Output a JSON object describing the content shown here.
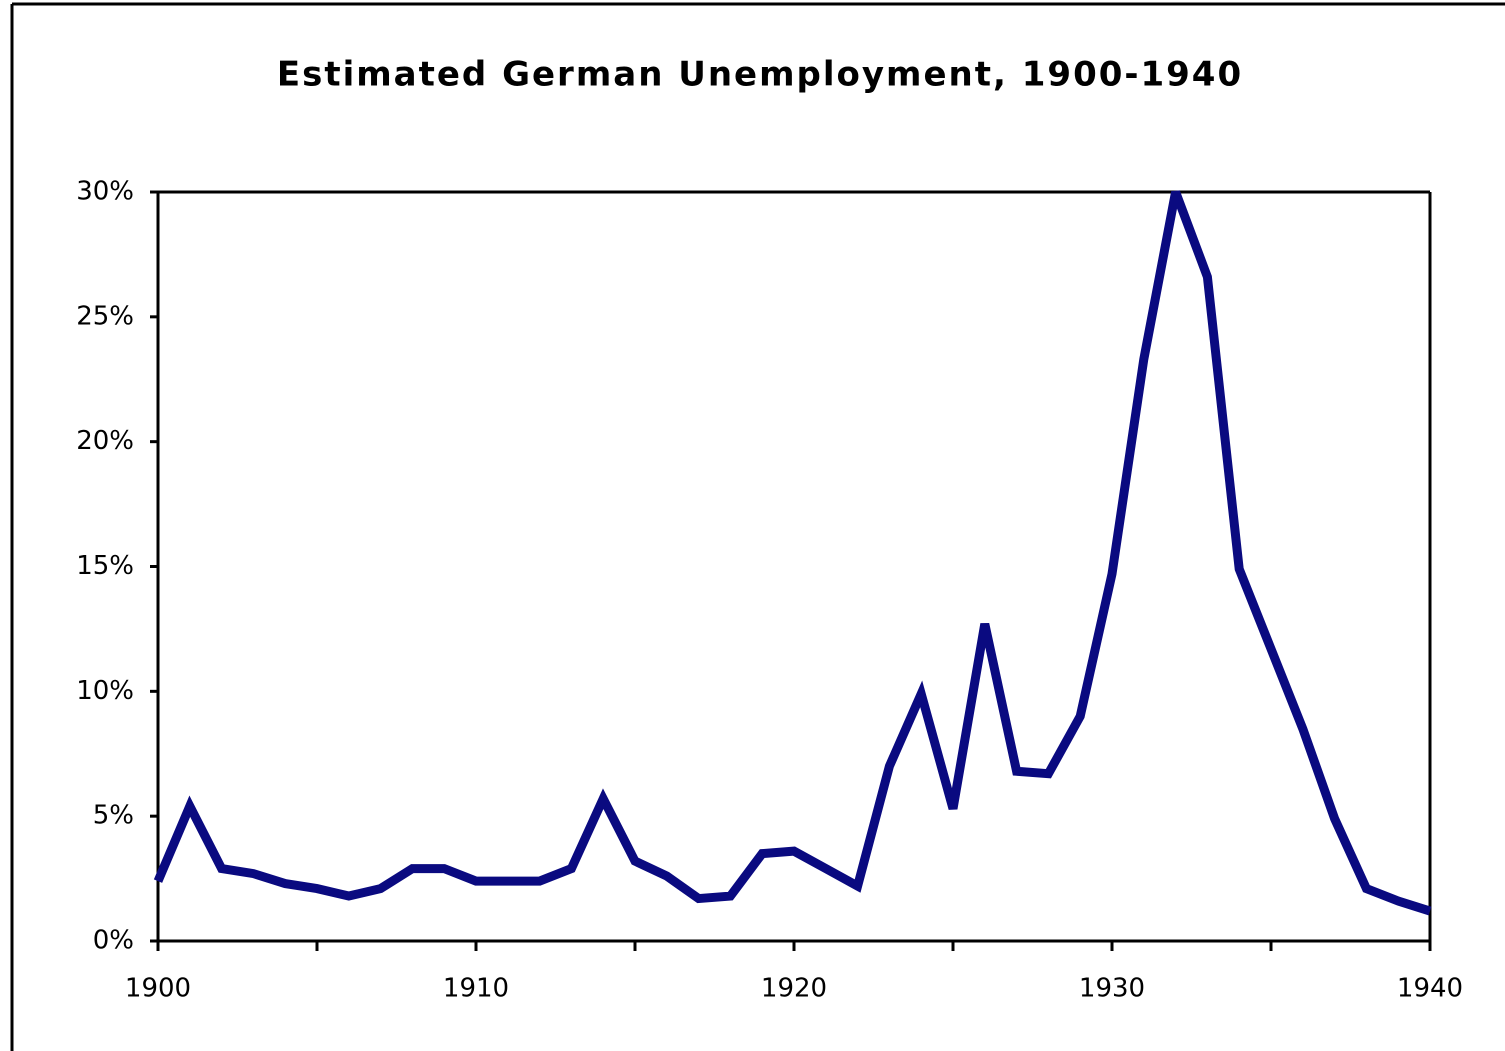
{
  "chart_data": {
    "type": "line",
    "title": "Estimated German Unemployment, 1900-1940",
    "x": [
      1900,
      1901,
      1902,
      1903,
      1904,
      1905,
      1906,
      1907,
      1908,
      1909,
      1910,
      1911,
      1912,
      1913,
      1914,
      1915,
      1916,
      1917,
      1918,
      1919,
      1920,
      1921,
      1922,
      1923,
      1924,
      1925,
      1926,
      1927,
      1928,
      1929,
      1930,
      1931,
      1932,
      1933,
      1934,
      1935,
      1936,
      1937,
      1938,
      1939,
      1940
    ],
    "series": [
      {
        "color": "#0a0a80",
        "values": [
          2.4,
          5.4,
          2.9,
          2.7,
          2.3,
          2.1,
          1.8,
          2.1,
          2.9,
          2.9,
          2.4,
          2.4,
          2.4,
          2.9,
          5.7,
          3.2,
          2.6,
          1.7,
          1.8,
          3.5,
          3.6,
          2.9,
          2.2,
          7.0,
          9.9,
          5.3,
          12.7,
          6.8,
          6.7,
          9.0,
          14.7,
          23.3,
          30.0,
          26.6,
          14.9,
          11.7,
          8.5,
          4.9,
          2.1,
          1.6,
          1.2
        ]
      }
    ],
    "xlim": [
      1900,
      1940
    ],
    "xticks": [
      1900,
      1910,
      1920,
      1930,
      1940
    ],
    "xminor_ticks": [
      1905,
      1915,
      1925,
      1935
    ],
    "ylim": [
      0,
      30
    ],
    "yticks": [
      {
        "value": 0,
        "label": "0%"
      },
      {
        "value": 5,
        "label": "5%"
      },
      {
        "value": 10,
        "label": "10%"
      },
      {
        "value": 15,
        "label": "15%"
      },
      {
        "value": 20,
        "label": "20%"
      },
      {
        "value": 25,
        "label": "25%"
      },
      {
        "value": 30,
        "label": "30%"
      }
    ],
    "grid": false
  }
}
